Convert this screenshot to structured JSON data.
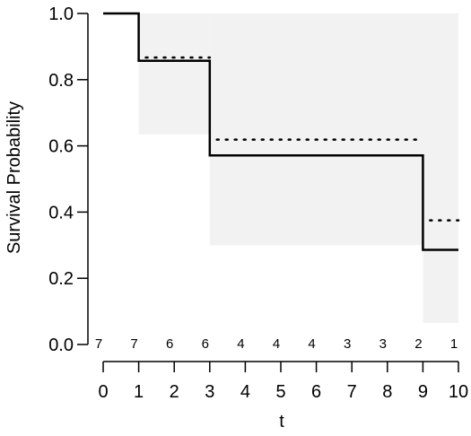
{
  "chart_data": {
    "type": "line",
    "xlabel": "t",
    "ylabel": "Survival Probability",
    "xlim": [
      0,
      10
    ],
    "ylim": [
      0,
      1
    ],
    "x_ticks": [
      0,
      1,
      2,
      3,
      4,
      5,
      6,
      7,
      8,
      9,
      10
    ],
    "y_ticks": [
      0.0,
      0.2,
      0.4,
      0.6,
      0.8,
      1.0
    ],
    "x_tick_labels": [
      "0",
      "1",
      "2",
      "3",
      "4",
      "5",
      "6",
      "7",
      "8",
      "9",
      "10"
    ],
    "y_tick_labels": [
      "0.0",
      "0.2",
      "0.4",
      "0.6",
      "0.8",
      "1.0"
    ],
    "grid": false,
    "survival_curve": {
      "x": [
        0,
        1,
        3,
        9,
        10
      ],
      "y": [
        1.0,
        0.857,
        0.571,
        0.286,
        0.286
      ]
    },
    "dotted_curve": [
      {
        "x": [
          1.2,
          3
        ],
        "y": 0.867
      },
      {
        "x": [
          3.2,
          9
        ],
        "y": 0.619
      },
      {
        "x": [
          9.2,
          10
        ],
        "y": 0.375
      }
    ],
    "confidence_band": [
      {
        "x": [
          1,
          3
        ],
        "lower": 0.635,
        "upper": 1.0
      },
      {
        "x": [
          3,
          9
        ],
        "lower": 0.3,
        "upper": 1.0
      },
      {
        "x": [
          9,
          10
        ],
        "lower": 0.065,
        "upper": 1.0
      }
    ],
    "number_at_risk": {
      "x": [
        0,
        1,
        2,
        3,
        4,
        5,
        6,
        7,
        8,
        9,
        10
      ],
      "values": [
        "7",
        "7",
        "6",
        "6",
        "4",
        "4",
        "4",
        "3",
        "3",
        "2",
        "1"
      ]
    },
    "colors": {
      "line": "#000000",
      "band": "#f2f2f2",
      "dots": "#000000"
    }
  }
}
